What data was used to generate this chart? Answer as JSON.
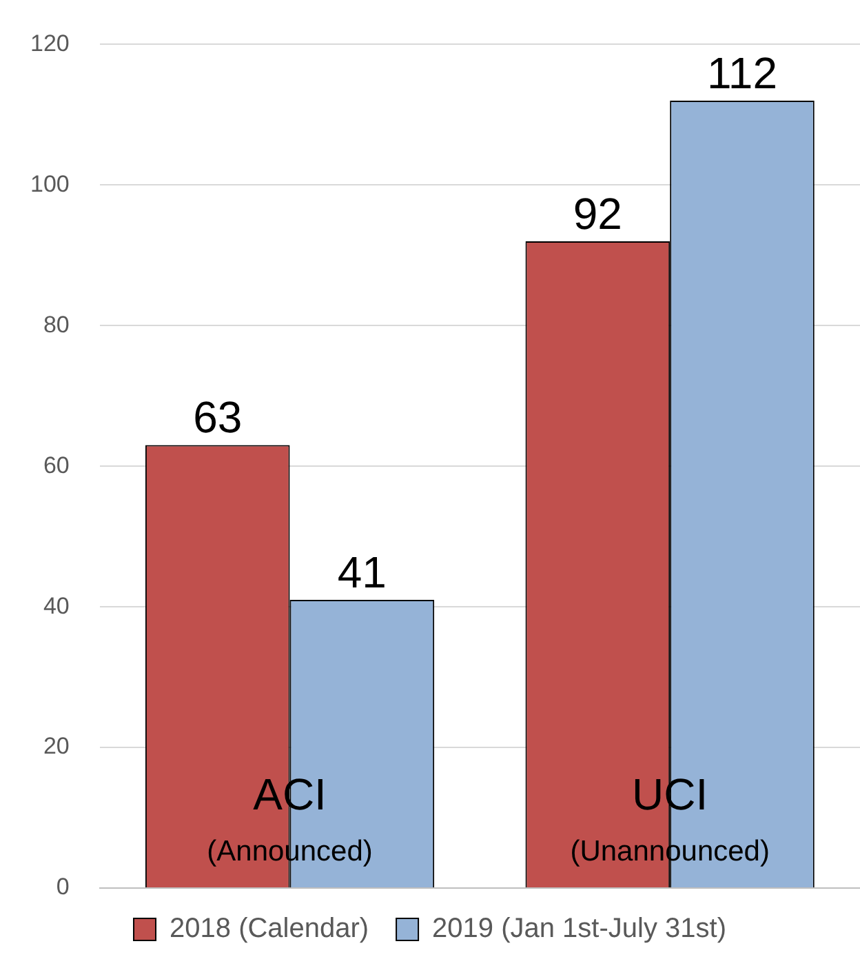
{
  "chart_data": {
    "type": "bar",
    "categories": [
      "ACI (Announced)",
      "UCI (Unannounced)"
    ],
    "series": [
      {
        "name": "2018 (Calendar)",
        "color": "#c0504d",
        "values": [
          63,
          92
        ]
      },
      {
        "name": "2019 (Jan 1st-July 31st)",
        "color": "#95b3d7",
        "values": [
          41,
          112
        ]
      }
    ],
    "ylim": [
      0,
      120
    ],
    "yticks": [
      0,
      20,
      40,
      60,
      80,
      100,
      120
    ],
    "grid": "y",
    "legend": "bottom",
    "data_labels": true
  }
}
